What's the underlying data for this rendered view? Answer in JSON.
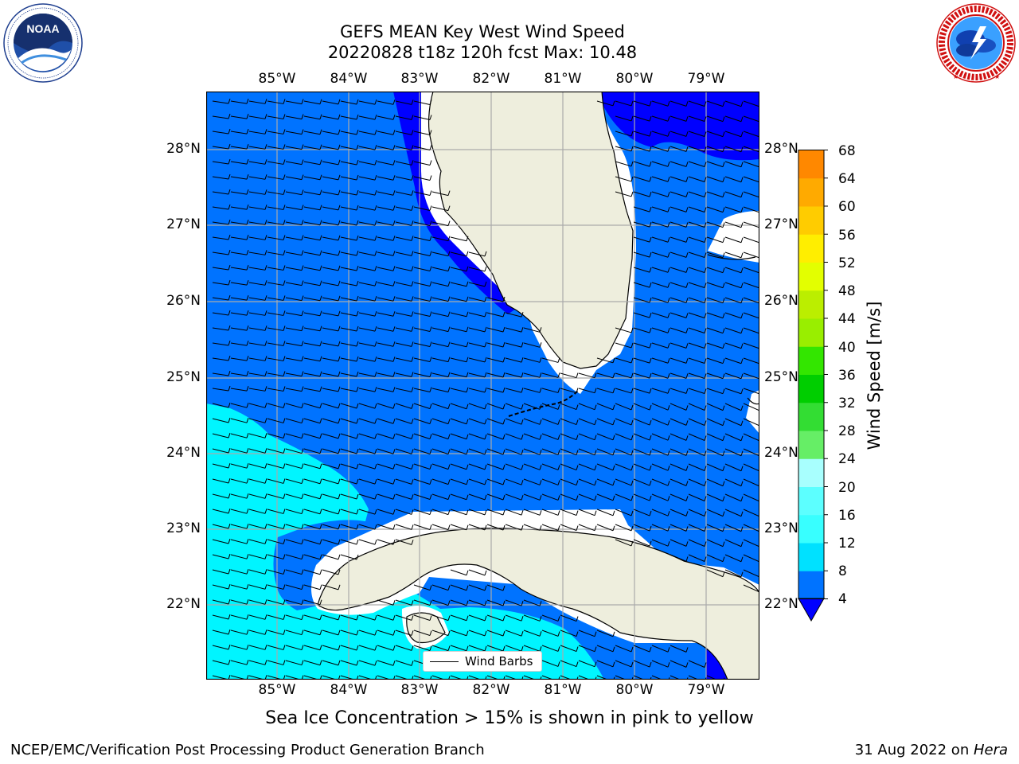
{
  "title": {
    "line1": "GEFS MEAN Key West Wind Speed",
    "line2": "20220828 t18z 120h fcst   Max: 10.48"
  },
  "logos": {
    "left": {
      "name": "noaa-logo",
      "text": "NOAA",
      "ring_text": "NATIONAL OCEANIC AND ATMOSPHERIC ADMINISTRATION · U.S. DEPARTMENT OF COMMERCE"
    },
    "right": {
      "name": "nws-logo",
      "ring_text": "NATIONAL WEATHER SERVICE"
    }
  },
  "map": {
    "region": "Key West / South Florida / Cuba",
    "lon_labels": [
      "85°W",
      "84°W",
      "83°W",
      "82°W",
      "81°W",
      "80°W",
      "79°W"
    ],
    "lat_labels": [
      "28°N",
      "27°N",
      "26°N",
      "25°N",
      "24°N",
      "23°N",
      "22°N"
    ],
    "extent": {
      "lon_min": -86.0,
      "lon_max": -78.25,
      "lat_min": 21.05,
      "lat_max": 28.8
    },
    "land_color": "#eeeedd",
    "gridlines": true,
    "wind_barbs": {
      "legend_label": "Wind Barbs",
      "legend_position": "bottom-center"
    }
  },
  "colorbar": {
    "label": "Wind Speed [m/s]",
    "ticks": [
      "68",
      "64",
      "60",
      "56",
      "52",
      "48",
      "44",
      "40",
      "36",
      "32",
      "28",
      "24",
      "20",
      "16",
      "12",
      "8",
      "4"
    ],
    "colors_low_to_high": [
      "#0073ff",
      "#00e1ff",
      "#38ffff",
      "#5cffff",
      "#a8fffe",
      "#66ee66",
      "#33dd33",
      "#00ce00",
      "#33e600",
      "#99ee00",
      "#bbee00",
      "#e3ff00",
      "#ffee00",
      "#ffcc00",
      "#ffaa00",
      "#ff8800",
      "#ff6600",
      "#ff3300",
      "#ff0000"
    ],
    "under_color": "#0000ff",
    "extend": "min"
  },
  "note": "Sea Ice Concentration > 15% is shown in pink to yellow",
  "footer": {
    "left": "NCEP/EMC/Verification Post Processing Product Generation Branch",
    "right_date": "31 Aug 2022 on ",
    "right_machine": "Hera"
  }
}
